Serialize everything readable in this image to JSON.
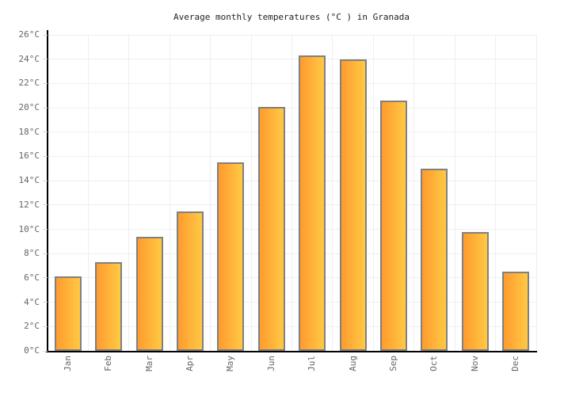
{
  "chart_data": {
    "type": "bar",
    "title": "Average monthly temperatures (°C ) in Granada",
    "categories": [
      "Jan",
      "Feb",
      "Mar",
      "Apr",
      "May",
      "Jun",
      "Jul",
      "Aug",
      "Sep",
      "Oct",
      "Nov",
      "Dec"
    ],
    "values": [
      6.1,
      7.3,
      9.4,
      11.5,
      15.5,
      20.1,
      24.3,
      24.0,
      20.6,
      15.0,
      9.8,
      6.5
    ],
    "xlabel": "",
    "ylabel": "",
    "ylim": [
      0,
      26
    ],
    "ytick_step": 2,
    "ytick_suffix": "°C",
    "grid": true,
    "legend_position": "none",
    "colors": {
      "bar_gradient_start": "#FF9B2F",
      "bar_gradient_end": "#FFC943",
      "bar_border": "#808080",
      "axis": "#000000",
      "gridline": "#EFEFEF",
      "tick": "#DDDDDD",
      "tick_label": "#666666",
      "title_text": "#222222",
      "background": "#FFFFFF"
    }
  }
}
